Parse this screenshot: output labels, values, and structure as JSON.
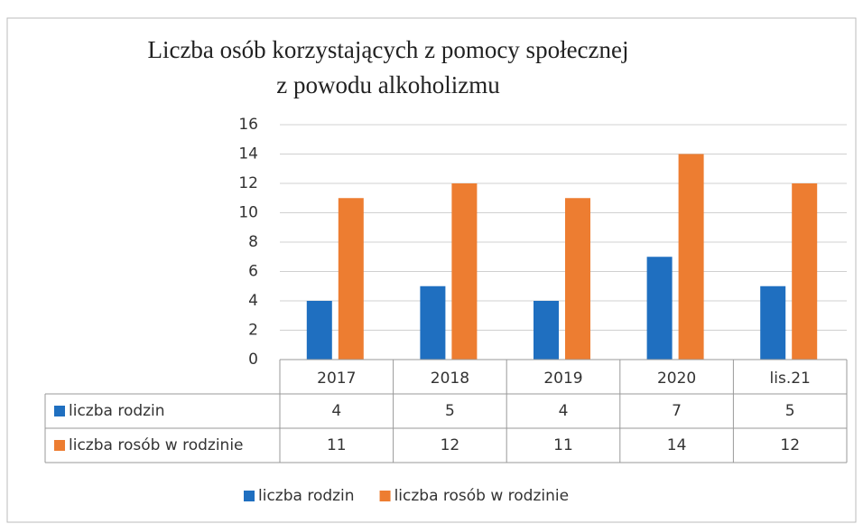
{
  "chart_data": {
    "type": "bar",
    "title": [
      "Liczba osób korzystających z pomocy społecznej",
      "z powodu alkoholizmu"
    ],
    "categories": [
      "2017",
      "2018",
      "2019",
      "2020",
      "lis.21"
    ],
    "series": [
      {
        "name": "liczba rodzin",
        "color": "#1f6fc0",
        "values": [
          4,
          5,
          4,
          7,
          5
        ]
      },
      {
        "name": "liczba rosób w rodzinie",
        "color": "#ed7d31",
        "values": [
          11,
          12,
          11,
          14,
          12
        ]
      }
    ],
    "ylim": [
      0,
      16
    ],
    "yticks": [
      0,
      2,
      4,
      6,
      8,
      10,
      12,
      14,
      16
    ],
    "grid": true,
    "legend": "bottom",
    "data_table": true
  }
}
